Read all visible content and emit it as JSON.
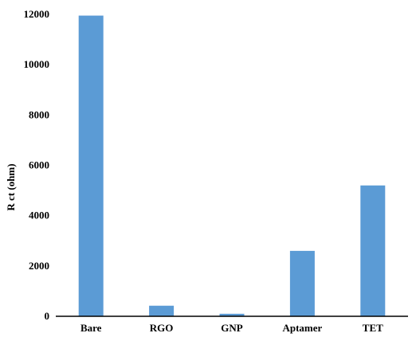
{
  "chart_data": {
    "type": "bar",
    "title": "",
    "xlabel": "",
    "ylabel": "R ct (ohm)",
    "categories": [
      "Bare",
      "RGO",
      "GNP",
      "Aptamer",
      "TET"
    ],
    "values": [
      11950,
      420,
      100,
      2600,
      5200
    ],
    "ylim": [
      0,
      12000
    ],
    "yticks": [
      0,
      2000,
      4000,
      6000,
      8000,
      10000,
      12000
    ],
    "ytick_labels": [
      "0",
      "2000",
      "4000",
      "6000",
      "8000",
      "10000",
      "12000"
    ],
    "grid": false,
    "legend": "none",
    "bar_color": "#5b9bd5"
  }
}
